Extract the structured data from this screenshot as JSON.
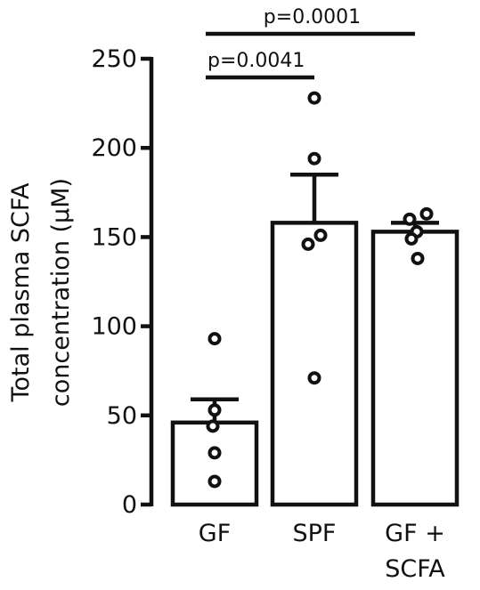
{
  "chart_data": {
    "type": "bar",
    "ylabel_lines": [
      "Total plasma SCFA",
      "concentration (µM)"
    ],
    "ylim": [
      0,
      250
    ],
    "yticks": [
      0,
      50,
      100,
      150,
      200,
      250
    ],
    "ytick_labels": [
      "0",
      "50",
      "100",
      "150",
      "200",
      "250"
    ],
    "categories": [
      {
        "lines": [
          "GF"
        ]
      },
      {
        "lines": [
          "SPF"
        ]
      },
      {
        "lines": [
          "GF +",
          "SCFA"
        ]
      }
    ],
    "values": [
      46,
      158,
      153
    ],
    "error": [
      13,
      27,
      5
    ],
    "points": [
      [
        93,
        53,
        44,
        29,
        13
      ],
      [
        228,
        194,
        151,
        146,
        71
      ],
      [
        163,
        160,
        153,
        149,
        138
      ]
    ],
    "significance": [
      {
        "from": 0,
        "to": 1,
        "label": "p=0.0041"
      },
      {
        "from": 0,
        "to": 2,
        "label": "p=0.0001"
      }
    ],
    "grid": false
  }
}
